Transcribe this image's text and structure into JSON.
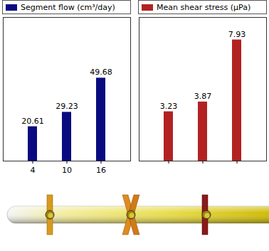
{
  "chart_data": [
    {
      "type": "bar",
      "categories": [
        "4",
        "10",
        "16"
      ],
      "series": [
        {
          "name": "Segment flow (cm³/day)",
          "color": "#0a0a80",
          "values": [
            20.61,
            29.23,
            49.68
          ]
        }
      ],
      "ylim": [
        0,
        86
      ],
      "yticks": [],
      "data_labels": true,
      "tick_labels": "x",
      "legend": "top"
    },
    {
      "type": "bar",
      "categories": [
        null,
        null,
        null
      ],
      "series": [
        {
          "name": "Mean shear stress (μPa)",
          "color": "#b22222",
          "values": [
            3.23,
            3.87,
            7.93
          ]
        }
      ],
      "ylim": [
        0,
        9.4
      ],
      "yticks": [],
      "data_labels": true,
      "tick_labels": false,
      "legend": "top"
    }
  ]
}
